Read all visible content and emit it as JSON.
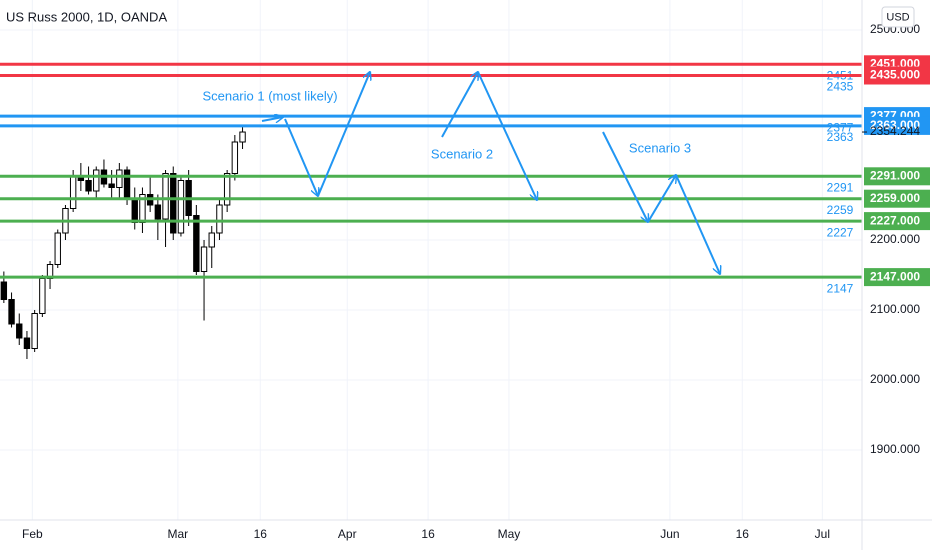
{
  "chart_data": {
    "type": "candlestick",
    "title": "US Russ 2000, 1D, OANDA",
    "currency": "USD",
    "candles": [
      [
        2140,
        2155,
        2110,
        2115
      ],
      [
        2115,
        2125,
        2075,
        2080
      ],
      [
        2080,
        2095,
        2050,
        2060
      ],
      [
        2060,
        2070,
        2030,
        2045
      ],
      [
        2045,
        2100,
        2040,
        2095
      ],
      [
        2095,
        2150,
        2090,
        2145
      ],
      [
        2145,
        2170,
        2130,
        2165
      ],
      [
        2165,
        2215,
        2160,
        2210
      ],
      [
        2210,
        2250,
        2200,
        2245
      ],
      [
        2245,
        2300,
        2240,
        2290
      ],
      [
        2290,
        2310,
        2270,
        2285
      ],
      [
        2285,
        2305,
        2265,
        2270
      ],
      [
        2270,
        2305,
        2260,
        2300
      ],
      [
        2300,
        2315,
        2275,
        2280
      ],
      [
        2280,
        2300,
        2260,
        2275
      ],
      [
        2275,
        2310,
        2260,
        2300
      ],
      [
        2300,
        2305,
        2250,
        2260
      ],
      [
        2260,
        2275,
        2215,
        2225
      ],
      [
        2225,
        2275,
        2210,
        2265
      ],
      [
        2265,
        2290,
        2240,
        2250
      ],
      [
        2250,
        2265,
        2200,
        2230
      ],
      [
        2230,
        2300,
        2190,
        2295
      ],
      [
        2295,
        2305,
        2200,
        2210
      ],
      [
        2210,
        2290,
        2205,
        2285
      ],
      [
        2285,
        2300,
        2220,
        2235
      ],
      [
        2235,
        2250,
        2150,
        2155
      ],
      [
        2155,
        2200,
        2085,
        2190
      ],
      [
        2190,
        2220,
        2160,
        2210
      ],
      [
        2210,
        2260,
        2200,
        2250
      ],
      [
        2250,
        2300,
        2240,
        2295
      ],
      [
        2295,
        2350,
        2285,
        2340
      ],
      [
        2340,
        2365,
        2330,
        2354.244
      ]
    ],
    "up_color": "#ffffff",
    "down_color": "#000000",
    "last_price": {
      "value": 2354.244,
      "label": "2354.244"
    },
    "levels": [
      {
        "value": 2451,
        "label": "2451.000",
        "text": "2451",
        "color": "#f23645"
      },
      {
        "value": 2435,
        "label": "2435.000",
        "text": "2435",
        "color": "#f23645"
      },
      {
        "value": 2377,
        "label": "2377.000",
        "text": "2377",
        "color": "#2196f3"
      },
      {
        "value": 2363,
        "label": "2363.000",
        "text": "2363",
        "color": "#2196f3"
      },
      {
        "value": 2291,
        "label": "2291.000",
        "text": "2291",
        "color": "#4caf50"
      },
      {
        "value": 2259,
        "label": "2259.000",
        "text": "2259",
        "color": "#4caf50"
      },
      {
        "value": 2227,
        "label": "2227.000",
        "text": "2227",
        "color": "#4caf50"
      },
      {
        "value": 2147,
        "label": "2147.000",
        "text": "2147",
        "color": "#4caf50"
      }
    ],
    "annotations": [
      "Scenario 1 (most likely)",
      "Scenario 2",
      "Scenario 3"
    ],
    "ylim": [
      1800,
      2542.86
    ],
    "yticks": [
      {
        "value": 1900,
        "label": "1900.000"
      },
      {
        "value": 2000,
        "label": "2000.000"
      },
      {
        "value": 2100,
        "label": "2100.000"
      },
      {
        "value": 2200,
        "label": "2200.000"
      },
      {
        "value": 2500,
        "label": "2500.000"
      }
    ],
    "xlim": [
      -0.5,
      111.45
    ],
    "xticks": [
      {
        "value": 3.7,
        "label": "Feb"
      },
      {
        "value": 22.6,
        "label": "Mar"
      },
      {
        "value": 33.3,
        "label": "16"
      },
      {
        "value": 44.6,
        "label": "Apr"
      },
      {
        "value": 55.1,
        "label": "16"
      },
      {
        "value": 65.6,
        "label": "May"
      },
      {
        "value": 86.5,
        "label": "Jun"
      },
      {
        "value": 95.9,
        "label": "16"
      },
      {
        "value": 106.3,
        "label": "Jul"
      }
    ],
    "grid": true
  }
}
